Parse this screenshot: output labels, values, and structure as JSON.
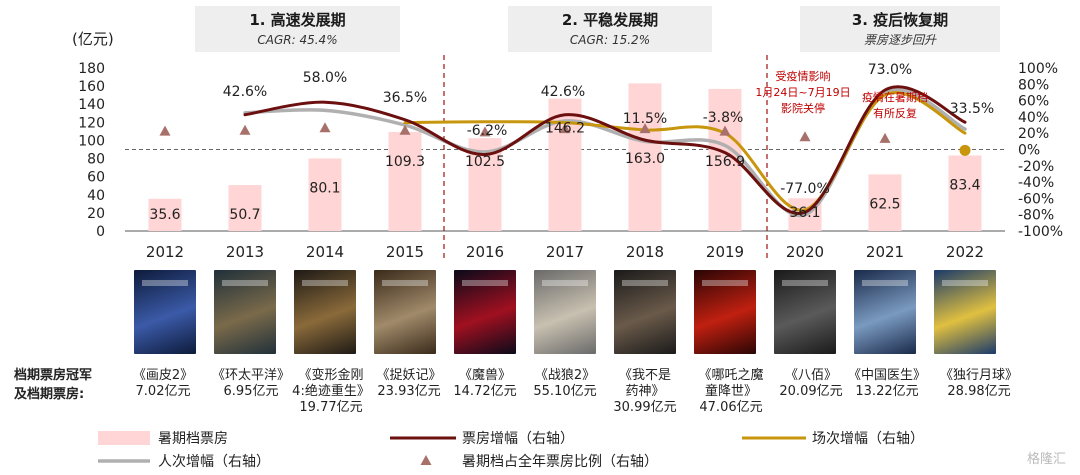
{
  "chart_data": {
    "type": "bar",
    "categories": [
      "2012",
      "2013",
      "2014",
      "2015",
      "2016",
      "2017",
      "2018",
      "2019",
      "2020",
      "2021",
      "2022"
    ],
    "y_left": {
      "unit": "(亿元)",
      "ticks": [
        0,
        20,
        40,
        60,
        80,
        100,
        120,
        140,
        160,
        180
      ],
      "ylim": [
        0,
        180
      ]
    },
    "y_right": {
      "ticks": [
        "-100%",
        "-80%",
        "-60%",
        "-40%",
        "-20%",
        "0%",
        "20%",
        "40%",
        "60%",
        "80%",
        "100%"
      ],
      "ylim": [
        -100,
        100
      ]
    },
    "series": [
      {
        "name": "暑期档票房",
        "type": "bar",
        "axis": "left",
        "values": [
          35.6,
          50.7,
          80.1,
          109.3,
          102.5,
          146.2,
          163.0,
          156.9,
          36.1,
          62.5,
          83.4
        ],
        "labels": [
          "35.6",
          "50.7",
          "80.1",
          "109.3",
          "102.5",
          "146.2",
          "163.0",
          "156.9",
          "36.1",
          "62.5",
          "83.4"
        ]
      },
      {
        "name": "票房增幅（右轴）",
        "type": "line",
        "axis": "right",
        "values": [
          null,
          42.6,
          58.0,
          36.5,
          -6.2,
          42.6,
          11.5,
          -3.8,
          -77.0,
          73.0,
          33.5
        ],
        "labels": [
          "",
          "42.6%",
          "58.0%",
          "36.5%",
          "-6.2%",
          "42.6%",
          "11.5%",
          "-3.8%",
          "-77.0%",
          "73.0%",
          "33.5%"
        ]
      },
      {
        "name": "场次增幅（右轴）",
        "type": "line",
        "axis": "right",
        "values": [
          null,
          null,
          null,
          33,
          34,
          33,
          24,
          20,
          -74,
          67,
          20
        ]
      },
      {
        "name": "人次增幅（右轴）",
        "type": "line",
        "axis": "right",
        "values": [
          null,
          45,
          48,
          30,
          -3,
          35,
          10,
          5,
          -80,
          70,
          25
        ]
      },
      {
        "name": "暑期档占全年票房比例（右轴）",
        "type": "scatter",
        "axis": "right",
        "values": [
          22,
          23,
          26,
          23,
          21,
          25,
          25,
          22,
          15,
          13,
          -1
        ]
      }
    ],
    "phases": [
      {
        "title": "1. 高速发展期",
        "subtitle": "CAGR: 45.4%"
      },
      {
        "title": "2. 平稳发展期",
        "subtitle": "CAGR: 15.2%"
      },
      {
        "title": "3. 疫后恢复期",
        "subtitle": "票房逐步回升"
      }
    ],
    "annotations": [
      {
        "lines": [
          "受疫情影响",
          "1月24日~7月19日",
          "影院关停"
        ]
      },
      {
        "lines": [
          "疫情在暑期档",
          "有所反复"
        ]
      }
    ],
    "colors": {
      "bar": "#ffd5d5",
      "box_office": "#6b0f0f",
      "screenings": "#c8960c",
      "admissions": "#b0b0b0",
      "share": "#a8706a",
      "dashed": "#a01010",
      "highlight_dot": "#c8960c"
    },
    "legend_position": "bottom"
  },
  "champions": {
    "heading": [
      "档期票房冠军",
      "及档期票房:"
    ],
    "items": [
      {
        "film": "《画皮2》",
        "gross": "7.02亿元"
      },
      {
        "film": "《环太平洋》",
        "gross": "6.95亿元"
      },
      {
        "film": "《变形金刚4:绝迹重生》",
        "gross": "19.77亿元",
        "lines": [
          "《变形金刚",
          "4:绝迹重生》",
          "19.77亿元"
        ]
      },
      {
        "film": "《捉妖记》",
        "gross": "23.93亿元"
      },
      {
        "film": "《魔兽》",
        "gross": "14.72亿元"
      },
      {
        "film": "《战狼2》",
        "gross": "55.10亿元"
      },
      {
        "film": "《我不是药神》",
        "gross": "30.99亿元",
        "lines": [
          "《我不是",
          "药神》",
          "30.99亿元"
        ]
      },
      {
        "film": "《哪吒之魔童降世》",
        "gross": "47.06亿元",
        "lines": [
          "《哪吒之魔",
          "童降世》",
          "47.06亿元"
        ]
      },
      {
        "film": "《八佰》",
        "gross": "20.09亿元"
      },
      {
        "film": "《中国医生》",
        "gross": "13.22亿元"
      },
      {
        "film": "《独行月球》",
        "gross": "28.98亿元"
      }
    ],
    "poster_colors": [
      [
        "#0d1b3a",
        "#3b5aa8"
      ],
      [
        "#20303a",
        "#7a6a4a"
      ],
      [
        "#1e1a16",
        "#8a6a3a"
      ],
      [
        "#3a2a1a",
        "#a08a6a"
      ],
      [
        "#0a0a1a",
        "#a01020"
      ],
      [
        "#6a6a6a",
        "#c8c0b0"
      ],
      [
        "#1a1a1a",
        "#6a5a4a"
      ],
      [
        "#2a0505",
        "#c02010"
      ],
      [
        "#1a1a1a",
        "#5a5a5a"
      ],
      [
        "#1a2a4a",
        "#7a9ac0"
      ],
      [
        "#1a3a6a",
        "#e0c040"
      ]
    ]
  },
  "watermark": "格隆汇"
}
